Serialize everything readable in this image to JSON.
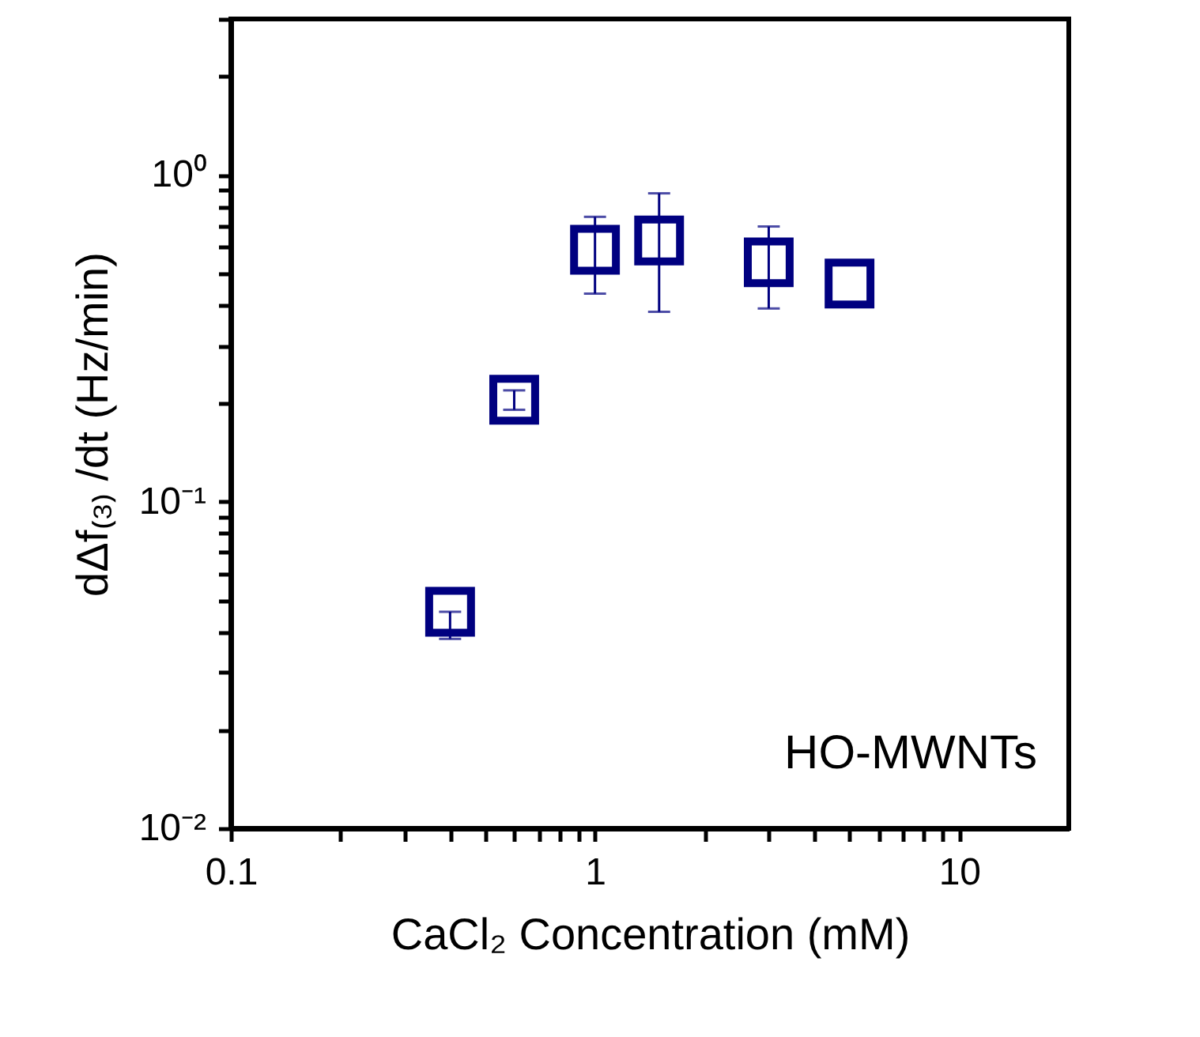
{
  "chart_data": {
    "type": "scatter",
    "xlabel": "CaCl₂ Concentration (mM)",
    "ylabel": "dΔf₍₃₎ /dt (Hz/min)",
    "x": [
      0.4,
      0.6,
      1,
      1.5,
      3,
      5
    ],
    "series": [
      {
        "color": "#000080",
        "values": [
          0.046,
          0.205,
          0.59,
          0.63,
          0.54,
          0.465
        ],
        "errors": [
          [
            0.038,
            0.046
          ],
          [
            0.191,
            0.219
          ],
          [
            0.433,
            0.744
          ],
          [
            0.381,
            0.878
          ],
          [
            0.39,
            0.695
          ],
          null
        ]
      }
    ],
    "marker": "square",
    "log": "xy",
    "grid": false,
    "xlim": [
      0.1,
      20
    ],
    "ylim": [
      0.01,
      3
    ],
    "xticks": [
      0.1,
      {
        "value": 0.2,
        "label": null
      },
      {
        "value": 0.3,
        "label": null
      },
      {
        "value": 0.4,
        "label": null
      },
      {
        "value": 0.5,
        "label": null
      },
      {
        "value": 0.6,
        "label": null
      },
      {
        "value": 0.7,
        "label": null
      },
      {
        "value": 0.8,
        "label": null
      },
      {
        "value": 0.9,
        "label": null
      },
      1,
      {
        "value": 2,
        "label": null
      },
      {
        "value": 3,
        "label": null
      },
      {
        "value": 4,
        "label": null
      },
      {
        "value": 5,
        "label": null
      },
      {
        "value": 6,
        "label": null
      },
      {
        "value": 7,
        "label": null
      },
      {
        "value": 8,
        "label": null
      },
      {
        "value": 9,
        "label": null
      },
      10
    ],
    "yticks": [
      {
        "value": 0.01,
        "label": "10⁻²"
      },
      {
        "value": 0.02,
        "label": null
      },
      {
        "value": 0.03,
        "label": null
      },
      {
        "value": 0.04,
        "label": null
      },
      {
        "value": 0.05,
        "label": null
      },
      {
        "value": 0.06,
        "label": null
      },
      {
        "value": 0.07,
        "label": null
      },
      {
        "value": 0.08,
        "label": null
      },
      {
        "value": 0.09,
        "label": null
      },
      {
        "value": 0.1,
        "label": "10⁻¹"
      },
      {
        "value": 0.2,
        "label": null
      },
      {
        "value": 0.3,
        "label": null
      },
      {
        "value": 0.4,
        "label": null
      },
      {
        "value": 0.5,
        "label": null
      },
      {
        "value": 0.6,
        "label": null
      },
      {
        "value": 0.7,
        "label": null
      },
      {
        "value": 0.8,
        "label": null
      },
      {
        "value": 0.9,
        "label": null
      },
      {
        "value": 1,
        "label": "10⁰"
      },
      {
        "value": 2,
        "label": null
      },
      {
        "value": 3,
        "label": null
      }
    ],
    "annotations": [
      "HO-MWNTs"
    ]
  }
}
